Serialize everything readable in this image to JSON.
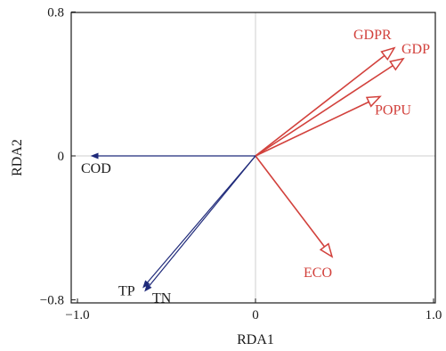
{
  "chart_data": {
    "type": "scatter",
    "subtype": "rda-biplot",
    "xlabel": "RDA1",
    "ylabel": "RDA2",
    "xlim": [
      -1.0,
      1.0
    ],
    "ylim": [
      -0.8,
      0.8
    ],
    "x_ticks": [
      -1.0,
      0,
      1.0
    ],
    "x_tick_labels": [
      "−1.0",
      "0",
      "1.0"
    ],
    "y_ticks": [
      -0.8,
      0,
      0.8
    ],
    "y_tick_labels": [
      "−0.8",
      "0",
      "0.8"
    ],
    "reference_lines": [
      0,
      0
    ],
    "vectors": [
      {
        "name": "GDPR",
        "x": 0.78,
        "y": 0.6,
        "group": "explanatory"
      },
      {
        "name": "GDP",
        "x": 0.83,
        "y": 0.54,
        "group": "explanatory"
      },
      {
        "name": "POPU",
        "x": 0.7,
        "y": 0.33,
        "group": "explanatory"
      },
      {
        "name": "ECO",
        "x": 0.43,
        "y": -0.56,
        "group": "explanatory"
      },
      {
        "name": "COD",
        "x": -0.92,
        "y": 0.0,
        "group": "response"
      },
      {
        "name": "TP",
        "x": -0.63,
        "y": -0.73,
        "group": "response"
      },
      {
        "name": "TN",
        "x": -0.62,
        "y": -0.75,
        "group": "response"
      }
    ],
    "colors": {
      "explanatory": "#d2413c",
      "response": "#1f2a7a",
      "axis": "#1a1a1a",
      "reference": "#cfcfcf"
    }
  }
}
